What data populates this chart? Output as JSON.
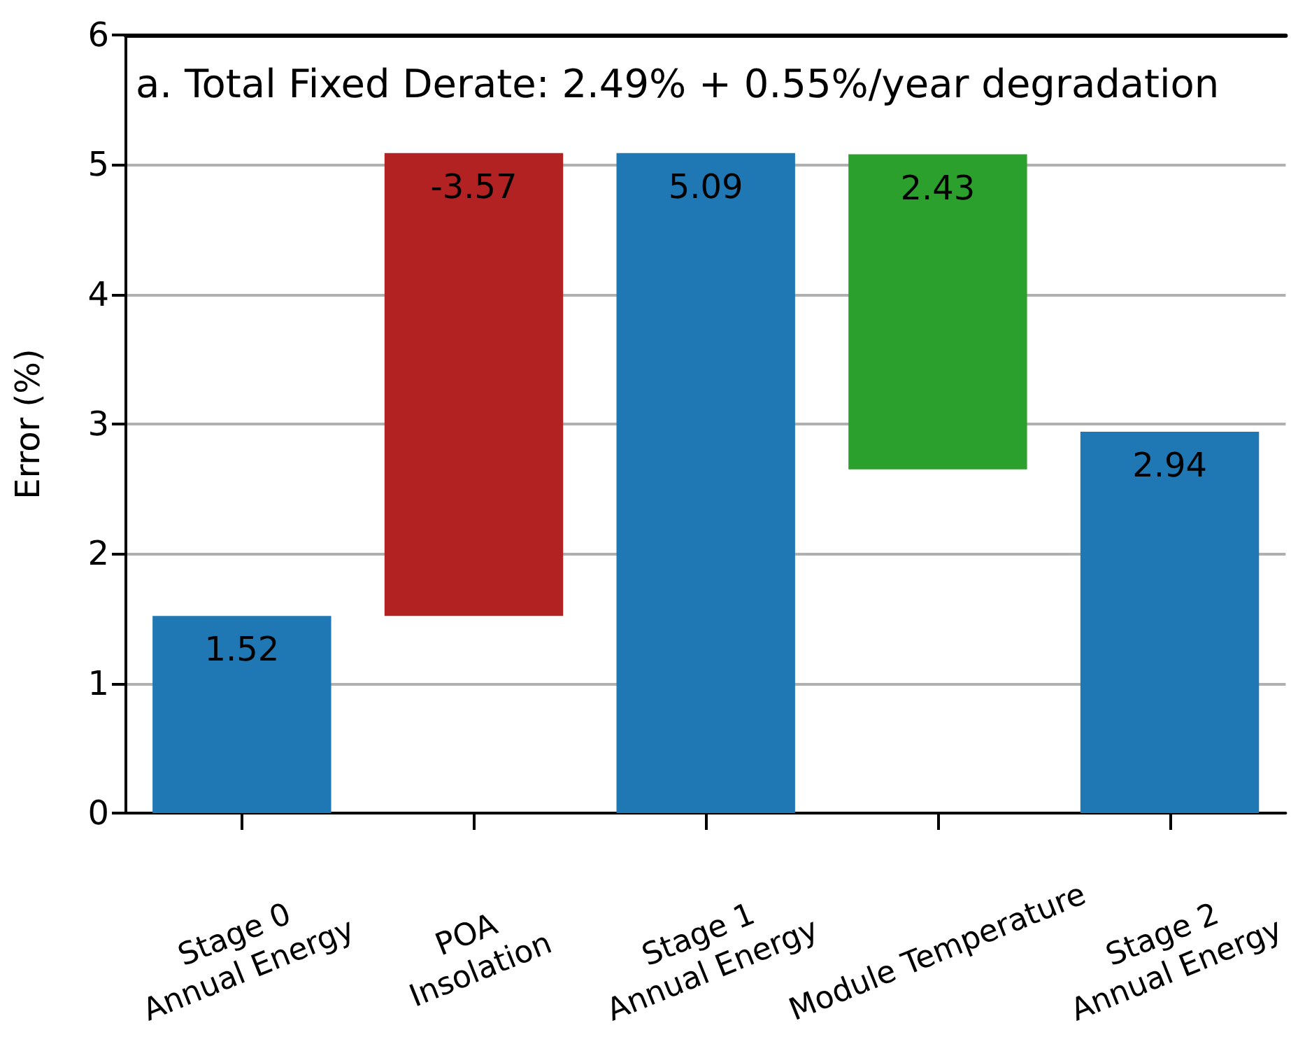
{
  "chart_data": {
    "type": "bar",
    "title": "a. Total Fixed Derate: 2.49% + 0.55%/year degradation",
    "ylabel": "Error (%)",
    "categories": [
      "Stage 0\nAnnual Energy",
      "POA\nInsolation",
      "Stage 1\nAnnual Energy",
      "Module Temperature",
      "Stage 2\nAnnual Energy"
    ],
    "values": [
      1.52,
      -3.57,
      5.09,
      2.43,
      2.94
    ],
    "base": [
      0,
      5.09,
      0,
      2.65,
      0
    ],
    "colors": [
      "#1f77b4",
      "#b22222",
      "#1f77b4",
      "#2ca02c",
      "#1f77b4"
    ],
    "ylim": [
      0,
      6
    ],
    "yticks": [
      0,
      1,
      2,
      3,
      4,
      5,
      6
    ],
    "grid": "y",
    "data_labels": true
  }
}
